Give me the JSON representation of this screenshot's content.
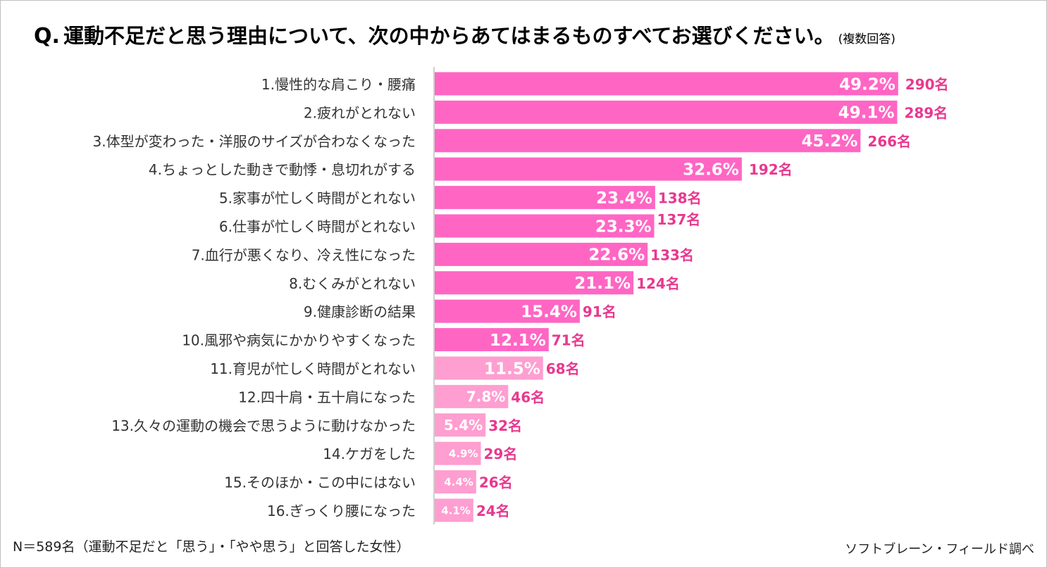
{
  "header": {
    "q_label": "Q.",
    "title": "運動不足だと思う理由について、次の中からあてはまるものすべてお選びください。",
    "note": "(複数回答)"
  },
  "footer": {
    "sample": "N＝589名（運動不足だと「思う」・「やや思う」と回答した女性）",
    "source": "ソフトブレーン・フィールド調べ"
  },
  "colors": {
    "bar_primary": "#ff66c4",
    "bar_secondary": "#ff9ed0",
    "count_text": "#e8388f",
    "bar_label_text": "#ffffff",
    "axis_line": "#bfbfbf"
  },
  "chart_data": {
    "type": "bar",
    "orientation": "horizontal",
    "categories": [
      "1.慢性的な肩こり・腰痛",
      "2.疲れがとれない",
      "3.体型が変わった・洋服のサイズが合わなくなった",
      "4.ちょっとした動きで動悸・息切れがする",
      "5.家事が忙しく時間がとれない",
      "6.仕事が忙しく時間がとれない",
      "7.血行が悪くなり、冷え性になった",
      "8.むくみがとれない",
      "9.健康診断の結果",
      "10.風邪や病気にかかりやすくなった",
      "11.育児が忙しく時間がとれない",
      "12.四十肩・五十肩になった",
      "13.久々の運動の機会で思うように動けなかった",
      "14.ケガをした",
      "15.そのほか・この中にはない",
      "16.ぎっくり腰になった"
    ],
    "values": [
      49.2,
      49.1,
      45.2,
      32.6,
      23.4,
      23.3,
      22.6,
      21.1,
      15.4,
      12.1,
      11.5,
      7.8,
      5.4,
      4.9,
      4.4,
      4.1
    ],
    "value_labels": [
      "49.2%",
      "49.1%",
      "45.2%",
      "32.6%",
      "23.4%",
      "23.3%",
      "22.6%",
      "21.1%",
      "15.4%",
      "12.1%",
      "11.5%",
      "7.8%",
      "5.4%",
      "4.9%",
      "4.4%",
      "4.1%"
    ],
    "counts": [
      "290名",
      "289名",
      "266名",
      "192名",
      "138名",
      "137名",
      "133名",
      "124名",
      "91名",
      "71名",
      "68名",
      "46名",
      "32名",
      "29名",
      "26名",
      "24名"
    ],
    "unit": "%",
    "xlim": [
      0,
      50
    ],
    "grid": false,
    "legend": "none"
  }
}
